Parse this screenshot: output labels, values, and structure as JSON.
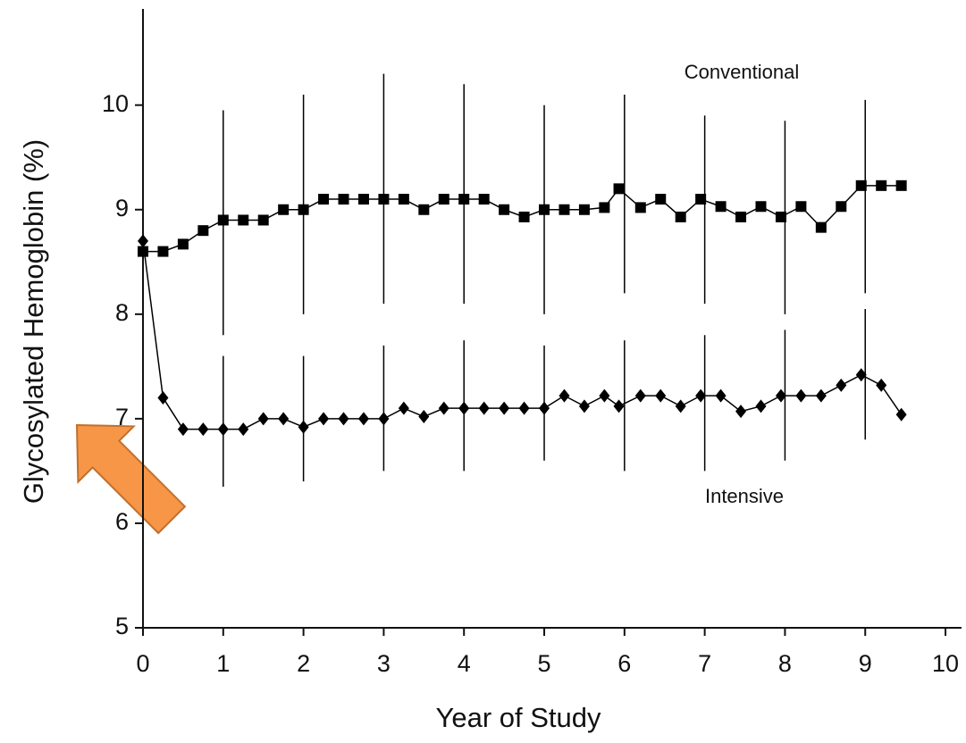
{
  "chart_data": {
    "type": "line",
    "xlabel": "Year of Study",
    "ylabel": "Glycosylated Hemoglobin (%)",
    "xlim": [
      0,
      10.2
    ],
    "ylim": [
      5,
      10.92
    ],
    "xticks": [
      0,
      1,
      2,
      3,
      4,
      5,
      6,
      7,
      8,
      9,
      10
    ],
    "yticks": [
      5,
      6,
      7,
      8,
      9,
      10
    ],
    "grid": false,
    "series": [
      {
        "name": "Conventional",
        "color": "#000000",
        "marker": "square",
        "x": [
          0,
          0.25,
          0.5,
          0.75,
          1,
          1.25,
          1.5,
          1.75,
          2,
          2.25,
          2.5,
          2.75,
          3,
          3.25,
          3.5,
          3.75,
          4,
          4.25,
          4.5,
          4.75,
          5,
          5.25,
          5.5,
          5.75,
          5.93,
          6.2,
          6.45,
          6.7,
          6.95,
          7.2,
          7.45,
          7.7,
          7.95,
          8.2,
          8.45,
          8.7,
          8.95,
          9.2,
          9.45
        ],
        "values": [
          8.6,
          8.6,
          8.67,
          8.8,
          8.9,
          8.9,
          8.9,
          9.0,
          9.0,
          9.1,
          9.1,
          9.1,
          9.1,
          9.1,
          9.0,
          9.1,
          9.1,
          9.1,
          9.0,
          8.93,
          9.0,
          9.0,
          9.0,
          9.02,
          9.2,
          9.02,
          9.1,
          8.93,
          9.1,
          9.03,
          8.93,
          9.03,
          8.93,
          9.03,
          8.83,
          9.03,
          9.23,
          9.23,
          9.23
        ],
        "error_x": [
          1,
          2,
          3,
          4,
          5,
          6,
          7,
          8,
          9
        ],
        "error_low": [
          7.8,
          8.0,
          8.1,
          8.1,
          8.0,
          8.2,
          8.1,
          8.0,
          8.2
        ],
        "error_high": [
          9.95,
          10.1,
          10.3,
          10.2,
          10.0,
          10.1,
          9.9,
          9.85,
          10.05
        ]
      },
      {
        "name": "Intensive",
        "color": "#000000",
        "marker": "diamond",
        "x": [
          0,
          0.25,
          0.5,
          0.75,
          1,
          1.25,
          1.5,
          1.75,
          2,
          2.25,
          2.5,
          2.75,
          3,
          3.25,
          3.5,
          3.75,
          4,
          4.25,
          4.5,
          4.75,
          5,
          5.25,
          5.5,
          5.75,
          5.93,
          6.2,
          6.45,
          6.7,
          6.95,
          7.2,
          7.45,
          7.7,
          7.95,
          8.2,
          8.45,
          8.7,
          8.95,
          9.2,
          9.45
        ],
        "values": [
          8.7,
          7.2,
          6.9,
          6.9,
          6.9,
          6.9,
          7.0,
          7.0,
          6.92,
          7.0,
          7.0,
          7.0,
          7.0,
          7.1,
          7.02,
          7.1,
          7.1,
          7.1,
          7.1,
          7.1,
          7.1,
          7.22,
          7.12,
          7.22,
          7.12,
          7.22,
          7.22,
          7.12,
          7.22,
          7.22,
          7.07,
          7.12,
          7.22,
          7.22,
          7.22,
          7.32,
          7.42,
          7.32,
          7.04
        ],
        "error_x": [
          1,
          2,
          3,
          4,
          5,
          6,
          7,
          8,
          9
        ],
        "error_low": [
          6.35,
          6.4,
          6.5,
          6.5,
          6.6,
          6.5,
          6.5,
          6.6,
          6.8
        ],
        "error_high": [
          7.6,
          7.6,
          7.7,
          7.75,
          7.7,
          7.75,
          7.8,
          7.85,
          8.05
        ]
      }
    ]
  }
}
